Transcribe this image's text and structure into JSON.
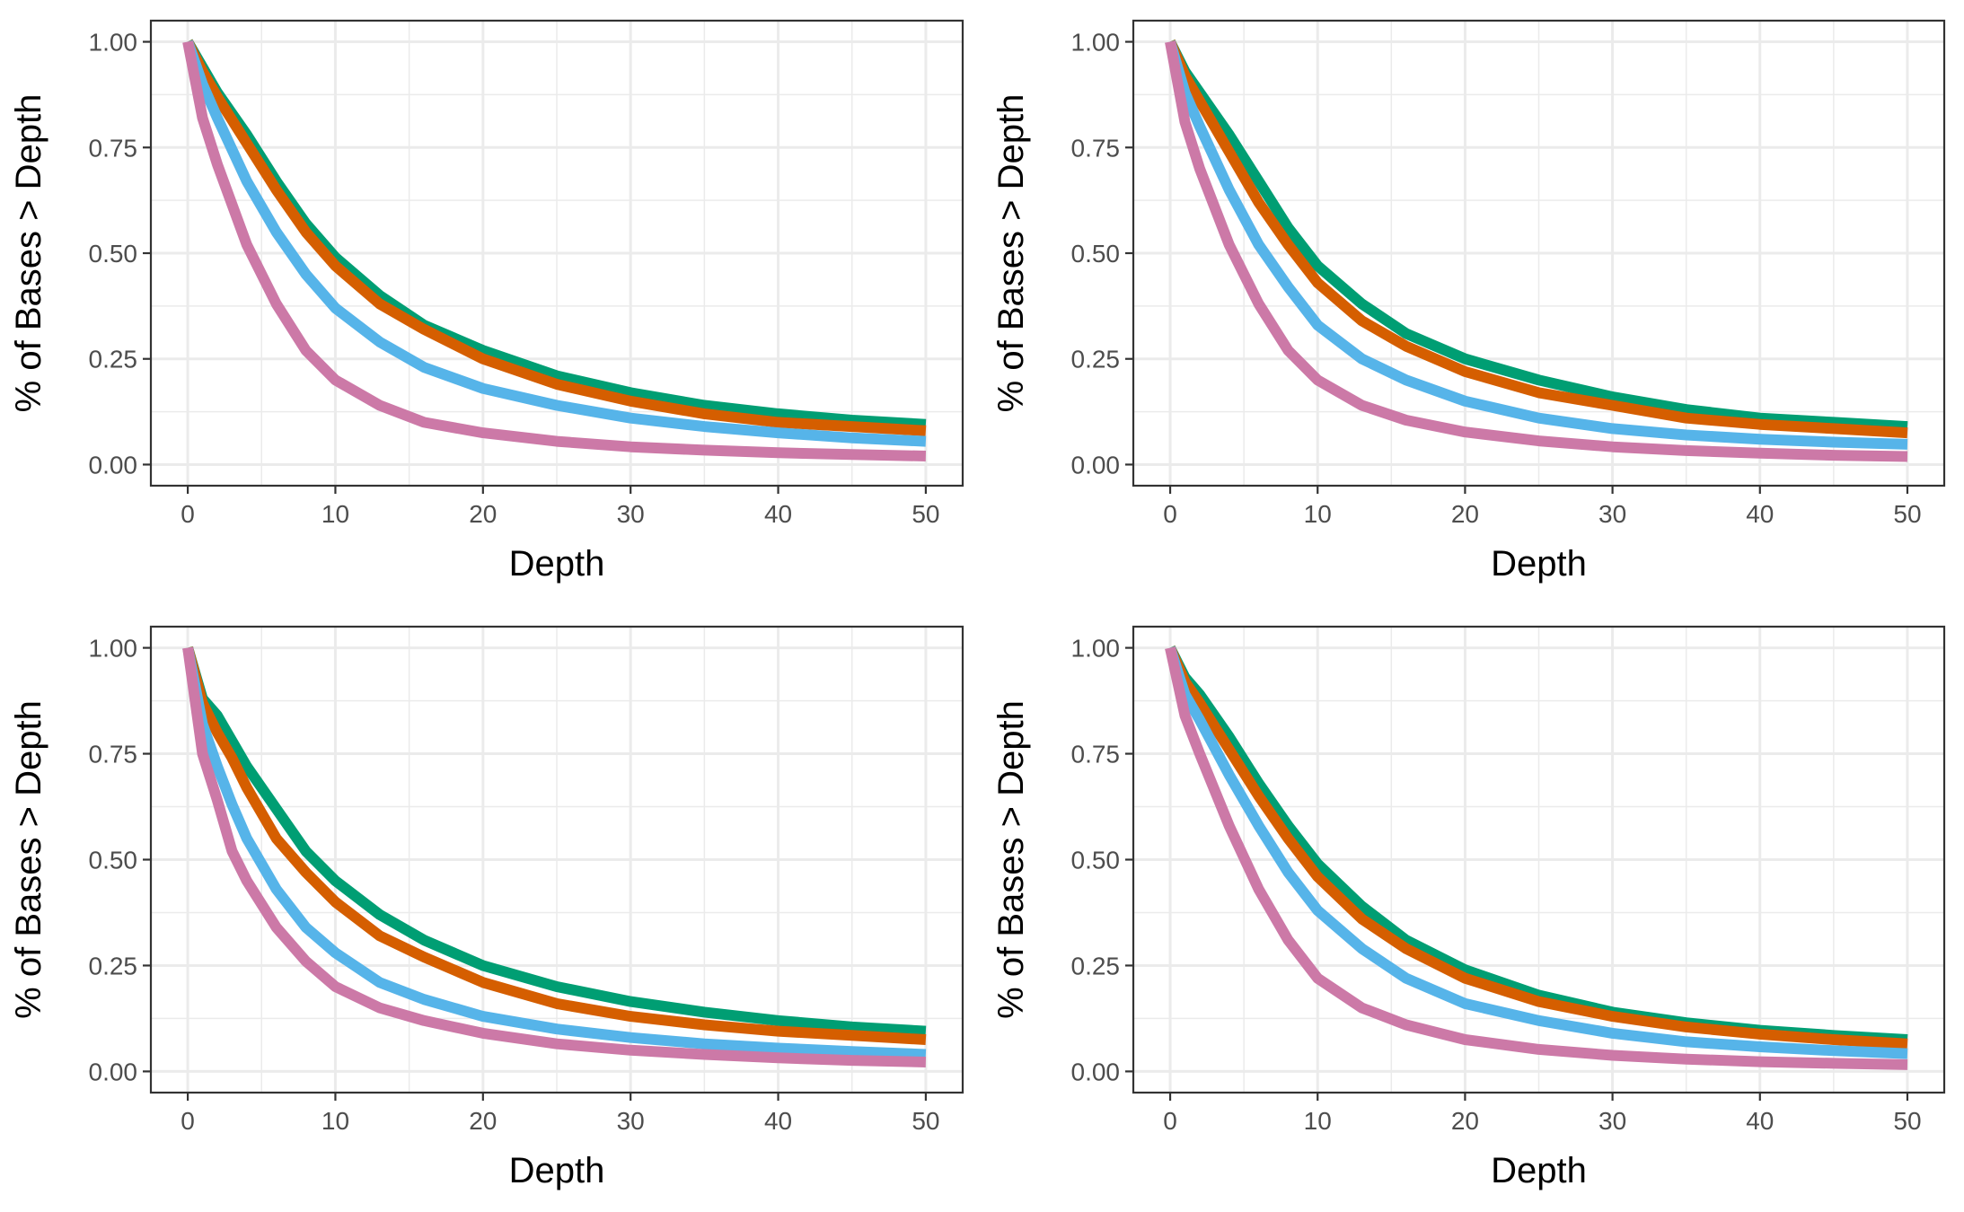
{
  "chart_data": [
    {
      "type": "line",
      "xlabel": "Depth",
      "ylabel": "% of Bases > Depth",
      "xlim": [
        -2.5,
        52.5
      ],
      "ylim": [
        -0.05,
        1.05
      ],
      "x_ticks": [
        0,
        10,
        20,
        30,
        40,
        50
      ],
      "y_ticks": [
        0.0,
        0.25,
        0.5,
        0.75,
        1.0
      ],
      "x_tick_labels": [
        "0",
        "10",
        "20",
        "30",
        "40",
        "50"
      ],
      "y_tick_labels": [
        "0.00",
        "0.25",
        "0.50",
        "0.75",
        "1.00"
      ],
      "grid": true,
      "x": [
        0,
        1,
        2,
        4,
        6,
        8,
        10,
        13,
        16,
        20,
        25,
        30,
        35,
        40,
        45,
        50
      ],
      "series": [
        {
          "color": "#009E73",
          "values": [
            1.0,
            0.94,
            0.88,
            0.78,
            0.67,
            0.57,
            0.49,
            0.4,
            0.33,
            0.27,
            0.21,
            0.17,
            0.14,
            0.12,
            0.105,
            0.095
          ]
        },
        {
          "color": "#D55E00",
          "values": [
            1.0,
            0.93,
            0.87,
            0.76,
            0.65,
            0.55,
            0.47,
            0.38,
            0.32,
            0.25,
            0.19,
            0.15,
            0.12,
            0.1,
            0.09,
            0.08
          ]
        },
        {
          "color": "#56B4E9",
          "values": [
            1.0,
            0.9,
            0.82,
            0.67,
            0.55,
            0.45,
            0.37,
            0.29,
            0.23,
            0.18,
            0.14,
            0.11,
            0.09,
            0.075,
            0.063,
            0.055
          ]
        },
        {
          "color": "#CC79A7",
          "values": [
            1.0,
            0.82,
            0.71,
            0.52,
            0.38,
            0.27,
            0.2,
            0.14,
            0.1,
            0.075,
            0.055,
            0.042,
            0.034,
            0.028,
            0.024,
            0.02
          ]
        }
      ]
    },
    {
      "type": "line",
      "xlabel": "Depth",
      "ylabel": "% of Bases > Depth",
      "xlim": [
        -2.5,
        52.5
      ],
      "ylim": [
        -0.05,
        1.05
      ],
      "x_ticks": [
        0,
        10,
        20,
        30,
        40,
        50
      ],
      "y_ticks": [
        0.0,
        0.25,
        0.5,
        0.75,
        1.0
      ],
      "x_tick_labels": [
        "0",
        "10",
        "20",
        "30",
        "40",
        "50"
      ],
      "y_tick_labels": [
        "0.00",
        "0.25",
        "0.50",
        "0.75",
        "1.00"
      ],
      "grid": true,
      "x": [
        0,
        1,
        2,
        4,
        6,
        8,
        10,
        13,
        16,
        20,
        25,
        30,
        35,
        40,
        45,
        50
      ],
      "series": [
        {
          "color": "#009E73",
          "values": [
            1.0,
            0.93,
            0.88,
            0.78,
            0.67,
            0.56,
            0.47,
            0.38,
            0.31,
            0.25,
            0.2,
            0.16,
            0.13,
            0.11,
            0.1,
            0.09
          ]
        },
        {
          "color": "#D55E00",
          "values": [
            1.0,
            0.92,
            0.86,
            0.74,
            0.62,
            0.52,
            0.43,
            0.34,
            0.28,
            0.22,
            0.17,
            0.14,
            0.11,
            0.095,
            0.085,
            0.075
          ]
        },
        {
          "color": "#56B4E9",
          "values": [
            1.0,
            0.88,
            0.8,
            0.65,
            0.52,
            0.42,
            0.33,
            0.25,
            0.2,
            0.15,
            0.11,
            0.085,
            0.07,
            0.06,
            0.053,
            0.048
          ]
        },
        {
          "color": "#CC79A7",
          "values": [
            1.0,
            0.81,
            0.7,
            0.52,
            0.38,
            0.27,
            0.2,
            0.14,
            0.105,
            0.077,
            0.056,
            0.042,
            0.033,
            0.027,
            0.022,
            0.019
          ]
        }
      ]
    },
    {
      "type": "line",
      "xlabel": "Depth",
      "ylabel": "% of Bases > Depth",
      "xlim": [
        -2.5,
        52.5
      ],
      "ylim": [
        -0.05,
        1.05
      ],
      "x_ticks": [
        0,
        10,
        20,
        30,
        40,
        50
      ],
      "y_ticks": [
        0.0,
        0.25,
        0.5,
        0.75,
        1.0
      ],
      "x_tick_labels": [
        "0",
        "10",
        "20",
        "30",
        "40",
        "50"
      ],
      "y_tick_labels": [
        "0.00",
        "0.25",
        "0.50",
        "0.75",
        "1.00"
      ],
      "grid": true,
      "x": [
        0,
        1,
        2,
        3,
        4,
        6,
        8,
        10,
        13,
        16,
        20,
        25,
        30,
        35,
        40,
        45,
        50
      ],
      "series": [
        {
          "color": "#009E73",
          "values": [
            1.0,
            0.88,
            0.84,
            0.78,
            0.72,
            0.62,
            0.52,
            0.45,
            0.37,
            0.31,
            0.25,
            0.2,
            0.165,
            0.14,
            0.12,
            0.105,
            0.095
          ]
        },
        {
          "color": "#D55E00",
          "values": [
            1.0,
            0.87,
            0.8,
            0.74,
            0.67,
            0.55,
            0.47,
            0.4,
            0.32,
            0.27,
            0.21,
            0.16,
            0.13,
            0.11,
            0.095,
            0.085,
            0.075
          ]
        },
        {
          "color": "#56B4E9",
          "values": [
            1.0,
            0.82,
            0.72,
            0.63,
            0.55,
            0.43,
            0.34,
            0.28,
            0.21,
            0.17,
            0.13,
            0.1,
            0.08,
            0.065,
            0.055,
            0.047,
            0.04
          ]
        },
        {
          "color": "#CC79A7",
          "values": [
            1.0,
            0.75,
            0.64,
            0.52,
            0.45,
            0.34,
            0.26,
            0.2,
            0.15,
            0.12,
            0.09,
            0.065,
            0.05,
            0.04,
            0.032,
            0.026,
            0.022
          ]
        }
      ]
    },
    {
      "type": "line",
      "xlabel": "Depth",
      "ylabel": "% of Bases > Depth",
      "xlim": [
        -2.5,
        52.5
      ],
      "ylim": [
        -0.05,
        1.05
      ],
      "x_ticks": [
        0,
        10,
        20,
        30,
        40,
        50
      ],
      "y_ticks": [
        0.0,
        0.25,
        0.5,
        0.75,
        1.0
      ],
      "x_tick_labels": [
        "0",
        "10",
        "20",
        "30",
        "40",
        "50"
      ],
      "y_tick_labels": [
        "0.00",
        "0.25",
        "0.50",
        "0.75",
        "1.00"
      ],
      "grid": true,
      "x": [
        0,
        1,
        2,
        4,
        6,
        8,
        10,
        13,
        16,
        20,
        25,
        30,
        35,
        40,
        45,
        50
      ],
      "series": [
        {
          "color": "#009E73",
          "values": [
            1.0,
            0.93,
            0.89,
            0.79,
            0.68,
            0.58,
            0.49,
            0.39,
            0.31,
            0.24,
            0.18,
            0.14,
            0.115,
            0.097,
            0.085,
            0.075
          ]
        },
        {
          "color": "#D55E00",
          "values": [
            1.0,
            0.92,
            0.87,
            0.76,
            0.65,
            0.55,
            0.46,
            0.36,
            0.29,
            0.22,
            0.165,
            0.13,
            0.105,
            0.088,
            0.075,
            0.065
          ]
        },
        {
          "color": "#56B4E9",
          "values": [
            1.0,
            0.89,
            0.83,
            0.7,
            0.58,
            0.47,
            0.38,
            0.29,
            0.22,
            0.16,
            0.12,
            0.09,
            0.07,
            0.058,
            0.049,
            0.042
          ]
        },
        {
          "color": "#CC79A7",
          "values": [
            1.0,
            0.84,
            0.75,
            0.58,
            0.43,
            0.31,
            0.22,
            0.15,
            0.11,
            0.075,
            0.052,
            0.038,
            0.029,
            0.023,
            0.019,
            0.016
          ]
        }
      ]
    }
  ]
}
